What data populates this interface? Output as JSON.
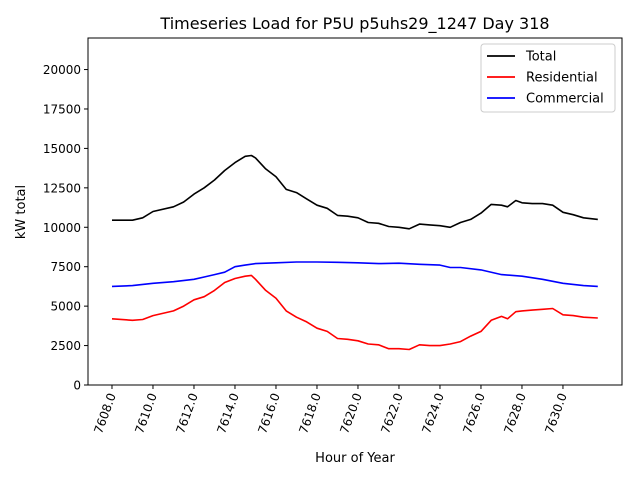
{
  "chart_data": {
    "type": "line",
    "title": "Timeseries Load for P5U p5uhs29_1247  Day 318",
    "xlabel": "Hour of Year",
    "ylabel": "kW total",
    "xlim": [
      7606.83,
      7632.88
    ],
    "ylim": [
      0,
      22000
    ],
    "xticks": [
      7608,
      7610,
      7612,
      7614,
      7616,
      7618,
      7620,
      7622,
      7624,
      7626,
      7628,
      7630
    ],
    "xtick_labels": [
      "7608.0",
      "7610.0",
      "7612.0",
      "7614.0",
      "7616.0",
      "7618.0",
      "7620.0",
      "7622.0",
      "7624.0",
      "7626.0",
      "7628.0",
      "7630.0"
    ],
    "yticks": [
      0,
      2500,
      5000,
      7500,
      10000,
      12500,
      15000,
      17500,
      20000
    ],
    "ytick_labels": [
      "0",
      "2500",
      "5000",
      "7500",
      "10000",
      "12500",
      "15000",
      "17500",
      "20000"
    ],
    "grid": false,
    "legend_position": "top-right",
    "series": [
      {
        "name": "Total",
        "color": "#000000",
        "x": [
          7608,
          7609,
          7609.5,
          7610,
          7611,
          7611.5,
          7612,
          7612.5,
          7613,
          7613.5,
          7614,
          7614.5,
          7614.8,
          7615,
          7615.5,
          7616,
          7616.5,
          7617,
          7617.5,
          7618,
          7618.5,
          7619,
          7619.5,
          7620,
          7620.5,
          7621,
          7621.5,
          7622,
          7622.5,
          7623,
          7623.5,
          7624,
          7624.5,
          7625,
          7625.5,
          7626,
          7626.5,
          7627,
          7627.3,
          7627.7,
          7628,
          7628.5,
          7629,
          7629.5,
          7630,
          7630.5,
          7631,
          7631.7
        ],
        "y": [
          10450,
          10450,
          10600,
          11000,
          11300,
          11600,
          12100,
          12500,
          13000,
          13600,
          14100,
          14500,
          14550,
          14400,
          13700,
          13200,
          12400,
          12200,
          11800,
          11400,
          11200,
          10750,
          10700,
          10600,
          10300,
          10250,
          10050,
          10000,
          9900,
          10200,
          10150,
          10100,
          10000,
          10300,
          10500,
          10900,
          11450,
          11400,
          11300,
          11700,
          11550,
          11500,
          11500,
          11400,
          10950,
          10800,
          10600,
          10500
        ]
      },
      {
        "name": "Residential",
        "color": "#ff0000",
        "x": [
          7608,
          7609,
          7609.5,
          7610,
          7611,
          7611.5,
          7612,
          7612.5,
          7613,
          7613.5,
          7614,
          7614.5,
          7614.8,
          7615,
          7615.5,
          7616,
          7616.5,
          7617,
          7617.5,
          7618,
          7618.5,
          7619,
          7619.5,
          7620,
          7620.5,
          7621,
          7621.5,
          7622,
          7622.5,
          7623,
          7623.5,
          7624,
          7624.5,
          7625,
          7625.5,
          7626,
          7626.5,
          7627,
          7627.3,
          7627.7,
          7628,
          7628.5,
          7629,
          7629.5,
          7630,
          7630.5,
          7631,
          7631.7
        ],
        "y": [
          4200,
          4100,
          4150,
          4400,
          4700,
          5000,
          5400,
          5600,
          6000,
          6500,
          6750,
          6900,
          6950,
          6700,
          6000,
          5500,
          4700,
          4300,
          4000,
          3600,
          3400,
          2950,
          2900,
          2800,
          2600,
          2550,
          2300,
          2300,
          2250,
          2550,
          2500,
          2500,
          2600,
          2750,
          3100,
          3400,
          4100,
          4350,
          4200,
          4650,
          4700,
          4750,
          4800,
          4850,
          4450,
          4400,
          4300,
          4250
        ]
      },
      {
        "name": "Commercial",
        "color": "#0000ff",
        "x": [
          7608,
          7609,
          7610,
          7611,
          7612,
          7612.5,
          7613,
          7613.5,
          7614,
          7614.5,
          7615,
          7616,
          7617,
          7618,
          7619,
          7620,
          7621,
          7622,
          7623,
          7624,
          7624.5,
          7625,
          7626,
          7627,
          7628,
          7629,
          7630,
          7631,
          7631.7
        ],
        "y": [
          6250,
          6300,
          6450,
          6550,
          6700,
          6850,
          7000,
          7150,
          7500,
          7600,
          7700,
          7750,
          7800,
          7800,
          7780,
          7750,
          7700,
          7720,
          7650,
          7600,
          7450,
          7450,
          7300,
          7000,
          6900,
          6700,
          6450,
          6300,
          6250
        ]
      }
    ]
  }
}
